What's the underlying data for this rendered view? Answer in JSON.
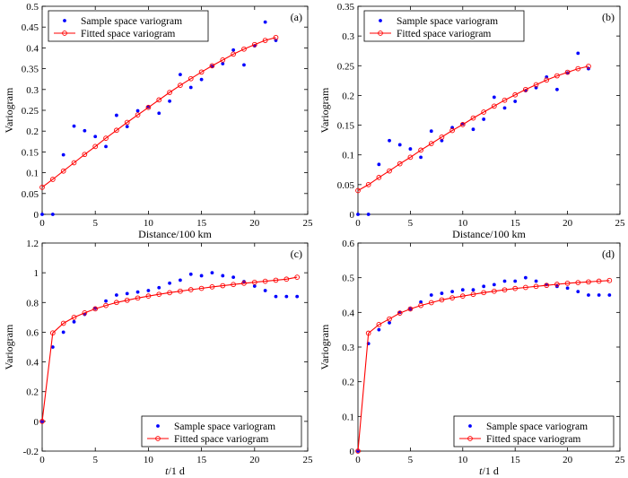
{
  "colors": {
    "sample": "#0000ff",
    "fitted": "#ff0000",
    "axis": "#000000"
  },
  "chart_data": [
    {
      "type": "scatter",
      "panel": "(a)",
      "xlabel": "Distance/100 km",
      "ylabel": "Variogram",
      "xlim": [
        0,
        25
      ],
      "ylim": [
        0,
        0.5
      ],
      "xticks": [
        0,
        5,
        10,
        15,
        20,
        25
      ],
      "xtick_labels": [
        "0",
        "5",
        "10",
        "15",
        "20",
        "25"
      ],
      "yticks": [
        0,
        0.05,
        0.1,
        0.15,
        0.2,
        0.25,
        0.3,
        0.35,
        0.4,
        0.45,
        0.5
      ],
      "ytick_labels": [
        "0",
        "0.05",
        "0.1",
        "0.15",
        "0.2",
        "0.25",
        "0.3",
        "0.35",
        "0.4",
        "0.45",
        "0.5"
      ],
      "legend_position": "top-left",
      "series": [
        {
          "name": "Sample space variogram",
          "kind": "points",
          "x": [
            0,
            1,
            2,
            3,
            4,
            5,
            6,
            7,
            8,
            9,
            10,
            11,
            12,
            13,
            14,
            15,
            16,
            17,
            18,
            19,
            20,
            21,
            22
          ],
          "y": [
            0,
            0,
            0.143,
            0.212,
            0.201,
            0.187,
            0.163,
            0.238,
            0.211,
            0.249,
            0.258,
            0.243,
            0.272,
            0.336,
            0.305,
            0.324,
            0.356,
            0.362,
            0.395,
            0.359,
            0.405,
            0.462,
            0.418
          ]
        },
        {
          "name": "Fitted space variogram",
          "kind": "line-circle",
          "x": [
            0,
            1,
            2,
            3,
            4,
            5,
            6,
            7,
            8,
            9,
            10,
            11,
            12,
            13,
            14,
            15,
            16,
            17,
            18,
            19,
            20,
            21,
            22
          ],
          "y": [
            0.065,
            0.084,
            0.104,
            0.124,
            0.144,
            0.163,
            0.183,
            0.202,
            0.221,
            0.239,
            0.257,
            0.275,
            0.293,
            0.31,
            0.326,
            0.342,
            0.357,
            0.371,
            0.385,
            0.397,
            0.408,
            0.418,
            0.425
          ]
        }
      ]
    },
    {
      "type": "scatter",
      "panel": "(b)",
      "xlabel": "Distance/100 km",
      "ylabel": "Variogram",
      "xlim": [
        0,
        25
      ],
      "ylim": [
        0,
        0.35
      ],
      "xticks": [
        0,
        5,
        10,
        15,
        20,
        25
      ],
      "xtick_labels": [
        "0",
        "5",
        "10",
        "15",
        "20",
        "25"
      ],
      "yticks": [
        0,
        0.05,
        0.1,
        0.15,
        0.2,
        0.25,
        0.3,
        0.35
      ],
      "ytick_labels": [
        "0",
        "0.05",
        "0.1",
        "0.15",
        "0.2",
        "0.25",
        "0.3",
        "0.35"
      ],
      "legend_position": "top-left",
      "series": [
        {
          "name": "Sample space variogram",
          "kind": "points",
          "x": [
            0,
            1,
            2,
            3,
            4,
            5,
            6,
            7,
            8,
            9,
            10,
            11,
            12,
            13,
            14,
            15,
            16,
            17,
            18,
            19,
            20,
            21,
            22
          ],
          "y": [
            0,
            0,
            0.084,
            0.124,
            0.117,
            0.11,
            0.096,
            0.14,
            0.124,
            0.146,
            0.152,
            0.143,
            0.16,
            0.197,
            0.179,
            0.19,
            0.208,
            0.213,
            0.231,
            0.21,
            0.238,
            0.271,
            0.245
          ]
        },
        {
          "name": "Fitted space variogram",
          "kind": "line-circle",
          "x": [
            0,
            1,
            2,
            3,
            4,
            5,
            6,
            7,
            8,
            9,
            10,
            11,
            12,
            13,
            14,
            15,
            16,
            17,
            18,
            19,
            20,
            21,
            22
          ],
          "y": [
            0.04,
            0.05,
            0.062,
            0.073,
            0.085,
            0.096,
            0.108,
            0.119,
            0.13,
            0.141,
            0.151,
            0.162,
            0.172,
            0.182,
            0.192,
            0.201,
            0.21,
            0.218,
            0.226,
            0.233,
            0.239,
            0.245,
            0.249
          ]
        }
      ]
    },
    {
      "type": "scatter",
      "panel": "(c)",
      "xlabel_italic": "t",
      "xlabel_rest": "/1 d",
      "ylabel": "Variogram",
      "xlim": [
        0,
        25
      ],
      "ylim": [
        -0.2,
        1.2
      ],
      "xticks": [
        0,
        5,
        10,
        15,
        20,
        25
      ],
      "xtick_labels": [
        "0",
        "5",
        "10",
        "15",
        "20",
        "25"
      ],
      "yticks": [
        -0.2,
        0,
        0.2,
        0.4,
        0.6,
        0.8,
        1,
        1.2
      ],
      "ytick_labels": [
        "-0.2",
        "0",
        "0.2",
        "0.4",
        "0.6",
        "0.8",
        "1",
        "1.2"
      ],
      "legend_position": "bottom-right",
      "series": [
        {
          "name": "Sample space variogram",
          "kind": "points",
          "x": [
            0,
            1,
            2,
            3,
            4,
            5,
            6,
            7,
            8,
            9,
            10,
            11,
            12,
            13,
            14,
            15,
            16,
            17,
            18,
            19,
            20,
            21,
            22,
            23,
            24
          ],
          "y": [
            0,
            0.5,
            0.6,
            0.67,
            0.72,
            0.76,
            0.81,
            0.85,
            0.86,
            0.87,
            0.88,
            0.9,
            0.93,
            0.95,
            0.99,
            0.98,
            1.0,
            0.98,
            0.97,
            0.94,
            0.91,
            0.88,
            0.84,
            0.84,
            0.84
          ]
        },
        {
          "name": "Fitted space variogram",
          "kind": "line-circle",
          "x": [
            0,
            1,
            2,
            3,
            4,
            5,
            6,
            7,
            8,
            9,
            10,
            11,
            12,
            13,
            14,
            15,
            16,
            17,
            18,
            19,
            20,
            21,
            22,
            23,
            24
          ],
          "y": [
            0,
            0.595,
            0.66,
            0.7,
            0.73,
            0.757,
            0.78,
            0.8,
            0.815,
            0.83,
            0.843,
            0.855,
            0.866,
            0.876,
            0.886,
            0.895,
            0.905,
            0.913,
            0.921,
            0.929,
            0.936,
            0.943,
            0.95,
            0.957,
            0.97
          ]
        }
      ]
    },
    {
      "type": "scatter",
      "panel": "(d)",
      "xlabel_italic": "t",
      "xlabel_rest": "/1 d",
      "ylabel": "Variogram",
      "xlim": [
        0,
        25
      ],
      "ylim": [
        0,
        0.6
      ],
      "xticks": [
        0,
        5,
        10,
        15,
        20,
        25
      ],
      "xtick_labels": [
        "0",
        "5",
        "10",
        "15",
        "20",
        "25"
      ],
      "yticks": [
        0,
        0.1,
        0.2,
        0.3,
        0.4,
        0.5,
        0.6
      ],
      "ytick_labels": [
        "0",
        "0.1",
        "0.2",
        "0.3",
        "0.4",
        "0.5",
        "0.6"
      ],
      "legend_position": "bottom-right",
      "series": [
        {
          "name": "Sample space variogram",
          "kind": "points",
          "x": [
            0,
            1,
            2,
            3,
            4,
            5,
            6,
            7,
            8,
            9,
            10,
            11,
            12,
            13,
            14,
            15,
            16,
            17,
            18,
            19,
            20,
            21,
            22,
            23,
            24
          ],
          "y": [
            0,
            0.31,
            0.35,
            0.37,
            0.4,
            0.41,
            0.43,
            0.45,
            0.455,
            0.46,
            0.465,
            0.465,
            0.475,
            0.48,
            0.49,
            0.49,
            0.5,
            0.49,
            0.48,
            0.475,
            0.47,
            0.46,
            0.45,
            0.45,
            0.45
          ]
        },
        {
          "name": "Fitted space variogram",
          "kind": "line-circle",
          "x": [
            0,
            1,
            2,
            3,
            4,
            5,
            6,
            7,
            8,
            9,
            10,
            11,
            12,
            13,
            14,
            15,
            16,
            17,
            18,
            19,
            20,
            21,
            22,
            23,
            24
          ],
          "y": [
            0,
            0.34,
            0.365,
            0.381,
            0.398,
            0.41,
            0.42,
            0.428,
            0.436,
            0.442,
            0.447,
            0.452,
            0.457,
            0.461,
            0.465,
            0.469,
            0.472,
            0.475,
            0.478,
            0.481,
            0.484,
            0.486,
            0.488,
            0.49,
            0.492
          ]
        }
      ]
    }
  ]
}
